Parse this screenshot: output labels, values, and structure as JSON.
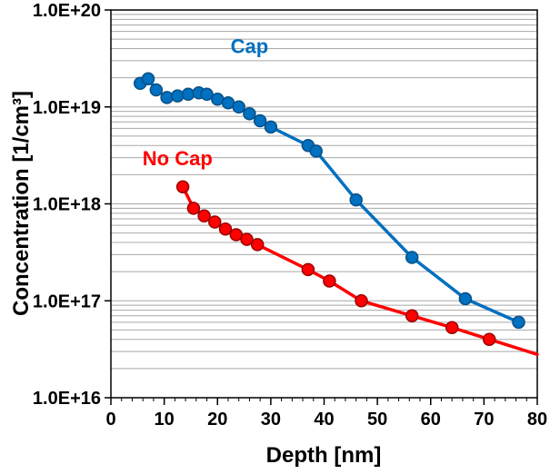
{
  "chart_data": {
    "type": "line",
    "title": "",
    "xlabel": "Depth [nm]",
    "ylabel": "Concentration [1/cm³]",
    "x_axis": {
      "min": 0,
      "max": 80,
      "major_step": 10,
      "minor_step": 2,
      "tick_labels": [
        "0",
        "10",
        "20",
        "30",
        "40",
        "50",
        "60",
        "70",
        "80"
      ]
    },
    "y_axis": {
      "scale": "log",
      "min": 1e+16,
      "max": 1e+20,
      "tick_labels": [
        "1.0E+16",
        "1.0E+17",
        "1.0E+18",
        "1.0E+19",
        "1.0E+20"
      ],
      "grid": "log-minor"
    },
    "grid_color": "#A8A8A8",
    "series": [
      {
        "name": "Cap",
        "color": "#0070C0",
        "marker_edge": "#084F85",
        "x": [
          5.5,
          7,
          8.5,
          10.5,
          12.5,
          14.5,
          16.5,
          18,
          20,
          22,
          24,
          26,
          28,
          30,
          37,
          38.5,
          46,
          56.5,
          66.5,
          76.5
        ],
        "y": [
          1.75e+19,
          1.95e+19,
          1.5e+19,
          1.25e+19,
          1.3e+19,
          1.35e+19,
          1.4e+19,
          1.35e+19,
          1.2e+19,
          1.1e+19,
          1e+19,
          8.5e+18,
          7.2e+18,
          6.2e+18,
          4e+18,
          3.5e+18,
          1.1e+18,
          2.8e+17,
          1.05e+17,
          6e+16
        ]
      },
      {
        "name": "No Cap",
        "color": "#FF0000",
        "marker_edge": "#990000",
        "x": [
          13.5,
          15.5,
          17.5,
          19.5,
          21.5,
          23.5,
          25.5,
          27.5,
          37,
          41,
          47,
          56.5,
          64,
          71
        ],
        "y": [
          1.5e+18,
          9e+17,
          7.5e+17,
          6.5e+17,
          5.5e+17,
          4.8e+17,
          4.3e+17,
          3.8e+17,
          2.1e+17,
          1.6e+17,
          1e+17,
          7e+16,
          5.3e+16,
          4e+16
        ],
        "line_extra": [
          [
            80,
            2.8e+16
          ]
        ]
      }
    ],
    "annotations": [
      {
        "text": "Cap",
        "color": "#0070C0",
        "x": 26,
        "y": 3.6e+19
      },
      {
        "text": "No Cap",
        "color": "#FF0000",
        "x": 12.5,
        "y": 2.5e+18
      }
    ]
  }
}
